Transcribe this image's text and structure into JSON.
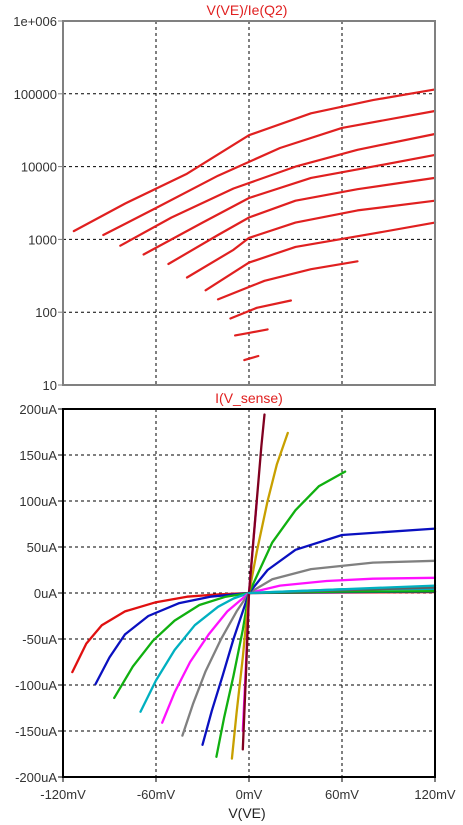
{
  "chart_data": [
    {
      "type": "line",
      "title": "V(VE)/Ie(Q2)",
      "xlabel": "",
      "ylabel": "",
      "y_scale": "log",
      "xlim": [
        -120,
        120
      ],
      "ylim": [
        10,
        1000000
      ],
      "y_ticks": [
        "10",
        "100",
        "1000",
        "10000",
        "100000",
        "1e+006"
      ],
      "y_tick_values": [
        10,
        100,
        1000,
        10000,
        100000,
        1000000
      ],
      "grid": true,
      "line_color": "#e02020",
      "series": [
        {
          "points": [
            [
              -113,
              1300
            ],
            [
              -80,
              3100
            ],
            [
              -40,
              8000
            ],
            [
              0,
              27000
            ],
            [
              40,
              54000
            ],
            [
              80,
              82000
            ],
            [
              120,
              115000
            ]
          ]
        },
        {
          "points": [
            [
              -94,
              1150
            ],
            [
              -60,
              2700
            ],
            [
              -20,
              7500
            ],
            [
              20,
              18000
            ],
            [
              60,
              34000
            ],
            [
              120,
              58000
            ]
          ]
        },
        {
          "points": [
            [
              -83,
              820
            ],
            [
              -50,
              2000
            ],
            [
              -10,
              5000
            ],
            [
              30,
              10000
            ],
            [
              70,
              17000
            ],
            [
              120,
              28000
            ]
          ]
        },
        {
          "points": [
            [
              -68,
              620
            ],
            [
              -30,
              1700
            ],
            [
              0,
              3700
            ],
            [
              40,
              7000
            ],
            [
              80,
              10000
            ],
            [
              120,
              14500
            ]
          ]
        },
        {
          "points": [
            [
              -52,
              460
            ],
            [
              -20,
              1150
            ],
            [
              0,
              2000
            ],
            [
              30,
              3400
            ],
            [
              70,
              4900
            ],
            [
              120,
              7000
            ]
          ]
        },
        {
          "points": [
            [
              -40,
              300
            ],
            [
              -10,
              720
            ],
            [
              0,
              1050
            ],
            [
              30,
              1700
            ],
            [
              70,
              2500
            ],
            [
              120,
              3400
            ]
          ]
        },
        {
          "points": [
            [
              -28,
              200
            ],
            [
              0,
              480
            ],
            [
              30,
              790
            ],
            [
              80,
              1200
            ],
            [
              120,
              1700
            ]
          ]
        },
        {
          "points": [
            [
              -20,
              150
            ],
            [
              10,
              270
            ],
            [
              40,
              390
            ],
            [
              70,
              500
            ]
          ]
        },
        {
          "points": [
            [
              -12,
              82
            ],
            [
              5,
              115
            ],
            [
              27,
              145
            ]
          ]
        },
        {
          "points": [
            [
              -9,
              48
            ],
            [
              0,
              52
            ],
            [
              12,
              58
            ]
          ]
        },
        {
          "points": [
            [
              -3,
              22
            ],
            [
              0,
              23
            ],
            [
              6,
              25
            ]
          ]
        }
      ]
    },
    {
      "type": "line",
      "title": "I(V_sense)",
      "xlabel": "V(VE)",
      "ylabel": "",
      "xlim": [
        -120,
        120
      ],
      "ylim": [
        -200,
        200
      ],
      "x_ticks": [
        "-120mV",
        "-60mV",
        "0mV",
        "60mV",
        "120mV"
      ],
      "x_tick_values": [
        -120,
        -60,
        0,
        60,
        120
      ],
      "y_ticks": [
        "-200uA",
        "-150uA",
        "-100uA",
        "-50uA",
        "0uA",
        "50uA",
        "100uA",
        "150uA",
        "200uA"
      ],
      "y_tick_values": [
        -200,
        -150,
        -100,
        -50,
        0,
        50,
        100,
        150,
        200
      ],
      "grid": true,
      "series": [
        {
          "color": "#e01010",
          "points": [
            [
              -114,
              -86
            ],
            [
              -105,
              -55
            ],
            [
              -95,
              -35
            ],
            [
              -80,
              -20
            ],
            [
              -60,
              -10
            ],
            [
              -40,
              -4
            ],
            [
              -20,
              -1.5
            ],
            [
              0,
              0
            ],
            [
              60,
              0.5
            ],
            [
              120,
              1
            ]
          ]
        },
        {
          "color": "#0a10c0",
          "points": [
            [
              -99,
              -99
            ],
            [
              -90,
              -70
            ],
            [
              -80,
              -45
            ],
            [
              -65,
              -25
            ],
            [
              -45,
              -11
            ],
            [
              -25,
              -4
            ],
            [
              0,
              0
            ],
            [
              60,
              1
            ],
            [
              120,
              1.5
            ]
          ]
        },
        {
          "color": "#10b010",
          "points": [
            [
              -87,
              -114
            ],
            [
              -75,
              -80
            ],
            [
              -62,
              -52
            ],
            [
              -48,
              -30
            ],
            [
              -32,
              -13
            ],
            [
              -15,
              -4
            ],
            [
              0,
              0
            ],
            [
              60,
              1.5
            ],
            [
              120,
              2
            ]
          ]
        },
        {
          "color": "#00b0c0",
          "points": [
            [
              -70,
              -129
            ],
            [
              -60,
              -95
            ],
            [
              -48,
              -62
            ],
            [
              -35,
              -35
            ],
            [
              -20,
              -15
            ],
            [
              -10,
              -6
            ],
            [
              0,
              0
            ],
            [
              60,
              4
            ],
            [
              120,
              4.5
            ]
          ]
        },
        {
          "color": "#ff10ff",
          "points": [
            [
              -56,
              -141
            ],
            [
              -48,
              -108
            ],
            [
              -38,
              -75
            ],
            [
              -26,
              -45
            ],
            [
              -14,
              -20
            ],
            [
              0,
              0
            ],
            [
              20,
              8
            ],
            [
              50,
              13
            ],
            [
              80,
              15.5
            ],
            [
              120,
              16.5
            ]
          ]
        },
        {
          "color": "#808080",
          "points": [
            [
              -43,
              -155
            ],
            [
              -36,
              -120
            ],
            [
              -28,
              -85
            ],
            [
              -18,
              -50
            ],
            [
              -8,
              -20
            ],
            [
              0,
              0
            ],
            [
              15,
              15
            ],
            [
              40,
              26
            ],
            [
              80,
              33
            ],
            [
              120,
              35
            ]
          ]
        },
        {
          "color": "#0a10c0",
          "points": [
            [
              -30,
              -165
            ],
            [
              -24,
              -128
            ],
            [
              -17,
              -90
            ],
            [
              -10,
              -50
            ],
            [
              0,
              0
            ],
            [
              12,
              25
            ],
            [
              30,
              47
            ],
            [
              60,
              63
            ],
            [
              120,
              70
            ]
          ]
        },
        {
          "color": "#10b010",
          "points": [
            [
              -21,
              -178
            ],
            [
              -16,
              -135
            ],
            [
              -10,
              -90
            ],
            [
              -4,
              -40
            ],
            [
              0,
              0
            ],
            [
              15,
              55
            ],
            [
              30,
              90
            ],
            [
              45,
              116
            ],
            [
              62,
              132
            ]
          ]
        },
        {
          "color": "#c8a000",
          "points": [
            [
              -11,
              -180
            ],
            [
              -8,
              -130
            ],
            [
              -4,
              -70
            ],
            [
              0,
              0
            ],
            [
              5,
              45
            ],
            [
              12,
              100
            ],
            [
              18,
              140
            ],
            [
              25,
              174
            ]
          ]
        },
        {
          "color": "#ff10ff",
          "points": [
            [
              -4,
              -150
            ],
            [
              -2,
              -80
            ],
            [
              0,
              0
            ],
            [
              2,
              40
            ],
            [
              5,
              100
            ]
          ]
        },
        {
          "color": "#800020",
          "points": [
            [
              -4,
              -170
            ],
            [
              -2,
              -90
            ],
            [
              0,
              0
            ],
            [
              3,
              60
            ],
            [
              6,
              120
            ],
            [
              8,
              160
            ],
            [
              10,
              194
            ]
          ]
        },
        {
          "color": "#606060",
          "points": [
            [
              0,
              0
            ],
            [
              60,
              3
            ],
            [
              120,
              6
            ]
          ]
        },
        {
          "color": "#00b0c0",
          "points": [
            [
              0,
              0
            ],
            [
              60,
              4
            ],
            [
              120,
              8
            ]
          ]
        }
      ]
    }
  ]
}
